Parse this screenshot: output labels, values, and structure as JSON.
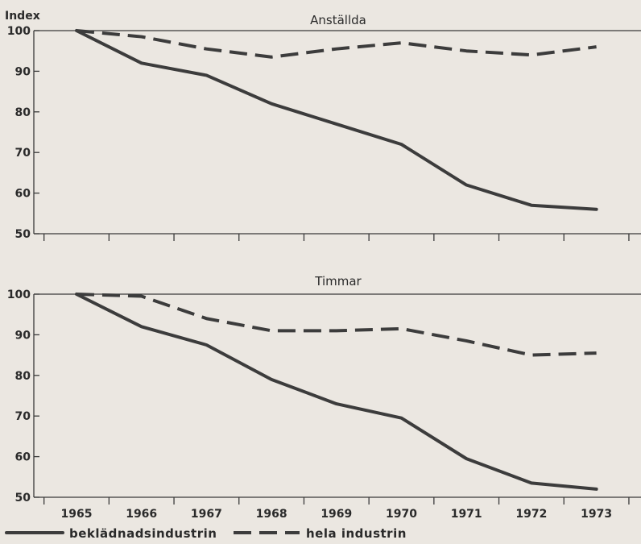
{
  "chart_data": [
    {
      "type": "line",
      "title": "Anställda",
      "ylabel": "Index",
      "xlabel": "",
      "x": [
        1965,
        1966,
        1967,
        1968,
        1969,
        1970,
        1971,
        1972,
        1973
      ],
      "ylim": [
        50,
        100
      ],
      "yticks": [
        50,
        60,
        70,
        80,
        90,
        100
      ],
      "series": [
        {
          "name": "beklädnadsindustrin",
          "style": "solid",
          "values": [
            100,
            92,
            89,
            82,
            77,
            72,
            62,
            57,
            56
          ]
        },
        {
          "name": "hela industrin",
          "style": "dashed",
          "values": [
            100,
            98.5,
            95.5,
            93.5,
            95.5,
            97,
            95,
            94,
            96
          ]
        }
      ]
    },
    {
      "type": "line",
      "title": "Timmar",
      "ylabel": "",
      "xlabel": "",
      "x": [
        1965,
        1966,
        1967,
        1968,
        1969,
        1970,
        1971,
        1972,
        1973
      ],
      "ylim": [
        50,
        100
      ],
      "yticks": [
        50,
        60,
        70,
        80,
        90,
        100
      ],
      "series": [
        {
          "name": "beklädnadsindustrin",
          "style": "solid",
          "values": [
            100,
            92,
            87.5,
            79,
            73,
            69.5,
            59.5,
            53.5,
            52
          ]
        },
        {
          "name": "hela industrin",
          "style": "dashed",
          "values": [
            100,
            99.5,
            94,
            91,
            91,
            91.5,
            88.5,
            85,
            85.5
          ]
        }
      ]
    }
  ],
  "legend": {
    "items": [
      "beklädnadsindustrin",
      "hela industrin"
    ]
  },
  "colors": {
    "line": "#3c3c3c",
    "background": "#ebe7e1"
  }
}
